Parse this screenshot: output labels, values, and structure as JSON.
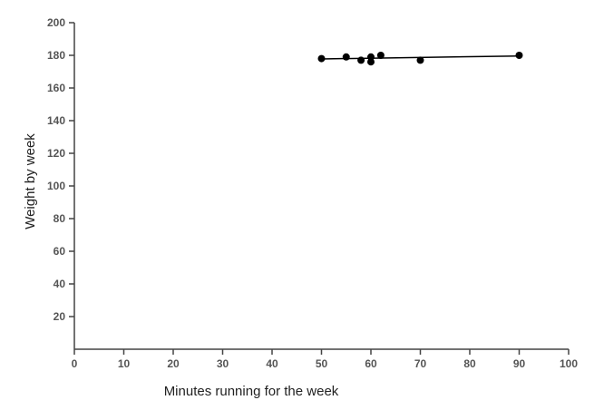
{
  "chart_data": {
    "type": "scatter",
    "title": "",
    "xlabel": "Minutes running for the week",
    "ylabel": "Weight by week",
    "xlim": [
      0,
      100
    ],
    "ylim": [
      0,
      200
    ],
    "x_ticks": [
      0,
      10,
      20,
      30,
      40,
      50,
      60,
      70,
      80,
      90,
      100
    ],
    "y_ticks": [
      20,
      40,
      60,
      80,
      100,
      120,
      140,
      160,
      180,
      200
    ],
    "grid": false,
    "legend": "none",
    "series": [
      {
        "points": [
          {
            "x": 50,
            "y": 178
          },
          {
            "x": 55,
            "y": 179
          },
          {
            "x": 58,
            "y": 177
          },
          {
            "x": 60,
            "y": 179
          },
          {
            "x": 60,
            "y": 176
          },
          {
            "x": 62,
            "y": 180
          },
          {
            "x": 70,
            "y": 177
          },
          {
            "x": 90,
            "y": 180
          }
        ]
      }
    ],
    "trendline": {
      "x": [
        50,
        90
      ],
      "y": [
        177.8,
        179.6
      ]
    },
    "colors": {
      "points": "#000000",
      "trendline": "#000000",
      "axis": "#444444"
    }
  }
}
